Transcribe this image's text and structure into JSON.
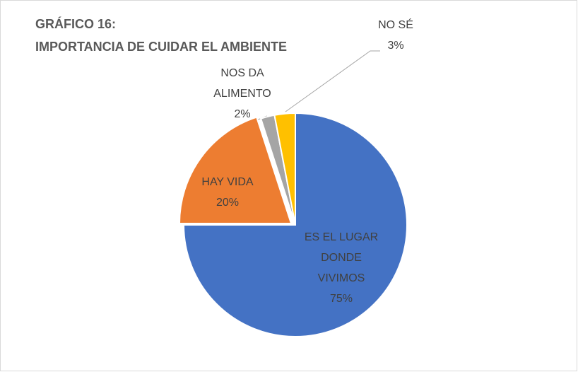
{
  "chart_data": {
    "type": "pie",
    "title": [
      "GRÁFICO 16:",
      "IMPORTANCIA DE CUIDAR EL AMBIENTE"
    ],
    "categories": [
      "ES EL LUGAR DONDE VIVIMOS",
      "HAY VIDA",
      "NOS DA ALIMENTO",
      "NO SÉ"
    ],
    "values": [
      75,
      20,
      2,
      3
    ],
    "value_labels": [
      "75%",
      "20%",
      "2%",
      "3%"
    ],
    "colors": [
      "#4472c4",
      "#ed7d31",
      "#a5a5a5",
      "#ffc000"
    ]
  }
}
